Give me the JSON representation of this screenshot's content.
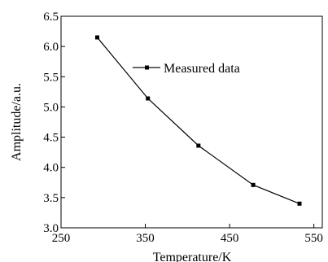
{
  "chart_data": {
    "type": "line",
    "xlabel": "Temperature/K",
    "ylabel": "Amplitude/a.u.",
    "xlim": [
      250,
      560
    ],
    "ylim": [
      3.0,
      6.5
    ],
    "xticks": [
      "250",
      "350",
      "450",
      "550"
    ],
    "yticks": [
      "3.0",
      "3.5",
      "4.0",
      "4.5",
      "5.0",
      "5.5",
      "6.0",
      "6.5"
    ],
    "grid": false,
    "legend_position": "top-center",
    "series": [
      {
        "name": "Measured data",
        "color": "#000000",
        "marker": "square",
        "x": [
          293,
          353,
          413,
          478,
          533
        ],
        "y": [
          6.15,
          5.14,
          4.36,
          3.71,
          3.4
        ]
      }
    ]
  }
}
